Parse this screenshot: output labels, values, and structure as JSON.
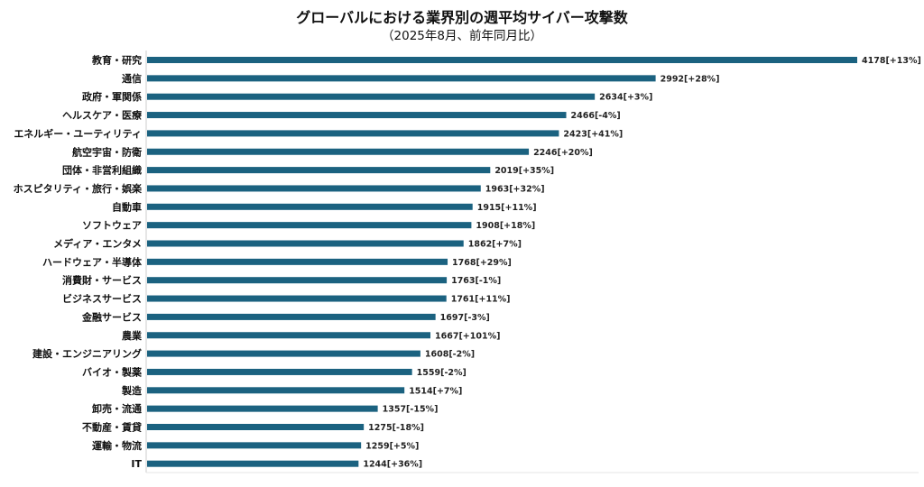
{
  "chart_data": {
    "type": "bar",
    "orientation": "horizontal",
    "title": "グローバルにおける業界別の週平均サイバー攻撃数",
    "subtitle": "（2025年8月、前年同月比）",
    "bar_color": "#1b6280",
    "xlim": [
      0,
      4178
    ],
    "categories": [
      "教育・研究",
      "通信",
      "政府・軍関係",
      "ヘルスケア・医療",
      "エネルギー・ユーティリティ",
      "航空宇宙・防衛",
      "団体・非営利組織",
      "ホスピタリティ・旅行・娯楽",
      "自動車",
      "ソフトウェア",
      "メディア・エンタメ",
      "ハードウェア・半導体",
      "消費財・サービス",
      "ビジネスサービス",
      "金融サービス",
      "農業",
      "建設・エンジニアリング",
      "バイオ・製薬",
      "製造",
      "卸売・流通",
      "不動産・賃貸",
      "運輸・物流",
      "IT"
    ],
    "values": [
      4178,
      2992,
      2634,
      2466,
      2423,
      2246,
      2019,
      1963,
      1915,
      1908,
      1862,
      1768,
      1763,
      1761,
      1697,
      1667,
      1608,
      1559,
      1514,
      1357,
      1275,
      1259,
      1244
    ],
    "changes": [
      "+13%",
      "+28%",
      "+3%",
      "-4%",
      "+41%",
      "+20%",
      "+35%",
      "+32%",
      "+11%",
      "+18%",
      "+7%",
      "+29%",
      "-1%",
      "+11%",
      "-3%",
      "+101%",
      "-2%",
      "-2%",
      "+7%",
      "-15%",
      "-18%",
      "+5%",
      "+36%"
    ],
    "value_labels": [
      "4178[+13%]",
      "2992[+28%]",
      "2634[+3%]",
      "2466[-4%]",
      "2423[+41%]",
      "2246[+20%]",
      "2019[+35%]",
      "1963[+32%]",
      "1915[+11%]",
      "1908[+18%]",
      "1862[+7%]",
      "1768[+29%]",
      "1763[-1%]",
      "1761[+11%]",
      "1697[-3%]",
      "1667[+101%]",
      "1608[-2%]",
      "1559[-2%]",
      "1514[+7%]",
      "1357[-15%]",
      "1275[-18%]",
      "1259[+5%]",
      "1244[+36%]"
    ],
    "grid": false,
    "legend": "none"
  }
}
